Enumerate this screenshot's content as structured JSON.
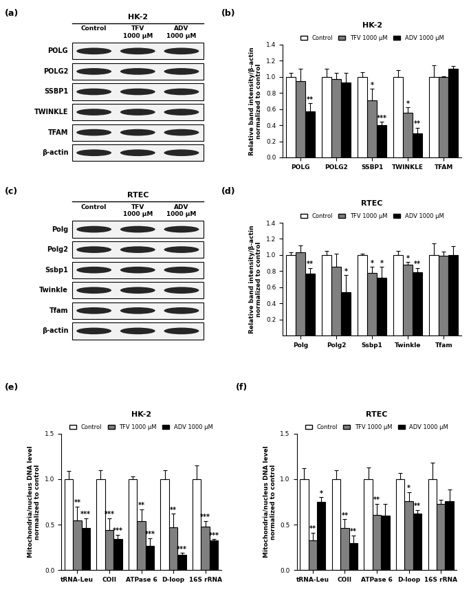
{
  "blots": [
    {
      "panel": "(a)",
      "title": "HK-2",
      "columns": [
        "Control",
        "TFV\n1000 μM",
        "ADV\n1000 μM"
      ],
      "rows": [
        "POLG",
        "POLG2",
        "SSBP1",
        "TWINKLE",
        "TFAM",
        "β-actin"
      ]
    },
    {
      "panel": "(c)",
      "title": "RTEC",
      "columns": [
        "Control",
        "TFV\n1000 μM",
        "ADV\n1000 μM"
      ],
      "rows": [
        "Polg",
        "Polg2",
        "Ssbp1",
        "Twinkle",
        "Tfam",
        "β-actin"
      ]
    }
  ],
  "chart_data": [
    {
      "panel": "(b)",
      "type": "bar",
      "title": "HK-2",
      "y_label": "Relative band intensity/β-actin\nnormalized to control",
      "categories": [
        "POLG",
        "POLG2",
        "SSBP1",
        "TWINKLE",
        "TFAM"
      ],
      "ylim": [
        0,
        1.4
      ],
      "yticks": [
        0.0,
        0.2,
        0.4,
        0.6,
        0.8,
        1.0,
        1.2,
        1.4
      ],
      "legend": "top",
      "series": [
        {
          "name": "Control",
          "color": "#ffffff",
          "values": [
            1.0,
            1.0,
            1.0,
            1.0,
            1.0
          ],
          "errors": [
            0.05,
            0.1,
            0.06,
            0.08,
            0.14
          ],
          "significance": [
            null,
            null,
            null,
            null,
            null
          ]
        },
        {
          "name": "TFV 1000 μM",
          "color": "#808080",
          "values": [
            0.95,
            0.97,
            0.71,
            0.55,
            1.0
          ],
          "errors": [
            0.15,
            0.08,
            0.14,
            0.07,
            0.005
          ],
          "significance": [
            null,
            null,
            "*",
            "*",
            null
          ]
        },
        {
          "name": "ADV 1000 μM",
          "color": "#000000",
          "values": [
            0.57,
            0.93,
            0.4,
            0.3,
            1.1
          ],
          "errors": [
            0.1,
            0.12,
            0.04,
            0.07,
            0.03
          ],
          "significance": [
            "**",
            null,
            "***",
            "**",
            null
          ]
        }
      ]
    },
    {
      "panel": "(d)",
      "type": "bar",
      "title": "RTEC",
      "y_label": "Relative band intensity/β-actin\nnormalized to control",
      "categories": [
        "Polg",
        "Polg2",
        "Ssbp1",
        "Twinkle",
        "Tfam"
      ],
      "ylim": [
        0,
        1.4
      ],
      "yticks": [
        0.2,
        0.4,
        0.6,
        0.8,
        1.0,
        1.2,
        1.4
      ],
      "legend": "top",
      "series": [
        {
          "name": "Control",
          "color": "#ffffff",
          "values": [
            1.0,
            1.0,
            1.0,
            1.0,
            1.0
          ],
          "errors": [
            0.03,
            0.05,
            0.02,
            0.05,
            0.14
          ],
          "significance": [
            null,
            null,
            null,
            null,
            null
          ]
        },
        {
          "name": "TFV 1000 μM",
          "color": "#808080",
          "values": [
            1.03,
            0.85,
            0.78,
            0.88,
            0.99
          ],
          "errors": [
            0.09,
            0.17,
            0.07,
            0.03,
            0.05
          ],
          "significance": [
            null,
            null,
            "*",
            "*",
            null
          ]
        },
        {
          "name": "ADV 1000 μM",
          "color": "#000000",
          "values": [
            0.77,
            0.54,
            0.72,
            0.79,
            1.0
          ],
          "errors": [
            0.07,
            0.21,
            0.13,
            0.05,
            0.11
          ],
          "significance": [
            "**",
            "*",
            "*",
            "**",
            null
          ]
        }
      ]
    },
    {
      "panel": "(e)",
      "type": "bar",
      "title": "HK-2",
      "y_label": "Mitochondria/nucleus DNA level\nnormalized to control",
      "categories": [
        "tRNA-Leu",
        "COII",
        "ATPase 6",
        "D-loop",
        "16S rRNA"
      ],
      "ylim": [
        0,
        1.5
      ],
      "yticks": [
        0.0,
        0.5,
        1.0,
        1.5
      ],
      "legend": "top",
      "series": [
        {
          "name": "Control",
          "color": "#ffffff",
          "values": [
            1.0,
            1.0,
            1.0,
            1.0,
            1.0
          ],
          "errors": [
            0.09,
            0.1,
            0.03,
            0.1,
            0.15
          ],
          "significance": [
            null,
            null,
            null,
            null,
            null
          ]
        },
        {
          "name": "TFV 1000 μM",
          "color": "#808080",
          "values": [
            0.55,
            0.44,
            0.54,
            0.47,
            0.48
          ],
          "errors": [
            0.15,
            0.13,
            0.13,
            0.15,
            0.06
          ],
          "significance": [
            "**",
            "***",
            "**",
            "**",
            "***"
          ]
        },
        {
          "name": "ADV 1000 μM",
          "color": "#000000",
          "values": [
            0.46,
            0.34,
            0.27,
            0.17,
            0.33
          ],
          "errors": [
            0.11,
            0.05,
            0.08,
            0.02,
            0.01
          ],
          "significance": [
            "***",
            "***",
            "***",
            "***",
            "***"
          ]
        }
      ]
    },
    {
      "panel": "(f)",
      "type": "bar",
      "title": "RTEC",
      "y_label": "Mitochondria/nucleus DNA level\nnormalized to control",
      "categories": [
        "tRNA-Leu",
        "COII",
        "ATPase 6",
        "D-loop",
        "16S rRNA"
      ],
      "ylim": [
        0,
        1.5
      ],
      "yticks": [
        0.0,
        0.5,
        1.0,
        1.5
      ],
      "legend": "top",
      "series": [
        {
          "name": "Control",
          "color": "#ffffff",
          "values": [
            1.0,
            1.0,
            1.0,
            1.0,
            1.0
          ],
          "errors": [
            0.12,
            0.1,
            0.13,
            0.07,
            0.18
          ],
          "significance": [
            null,
            null,
            null,
            null,
            null
          ]
        },
        {
          "name": "TFV 1000 μM",
          "color": "#808080",
          "values": [
            0.33,
            0.46,
            0.61,
            0.76,
            0.73
          ],
          "errors": [
            0.08,
            0.1,
            0.12,
            0.1,
            0.04
          ],
          "significance": [
            "**",
            "**",
            "**",
            "*",
            null
          ]
        },
        {
          "name": "ADV 1000 μM",
          "color": "#000000",
          "values": [
            0.75,
            0.3,
            0.6,
            0.62,
            0.76
          ],
          "errors": [
            0.05,
            0.08,
            0.13,
            0.04,
            0.13
          ],
          "significance": [
            "*",
            "**",
            null,
            "**",
            null
          ]
        }
      ]
    }
  ]
}
